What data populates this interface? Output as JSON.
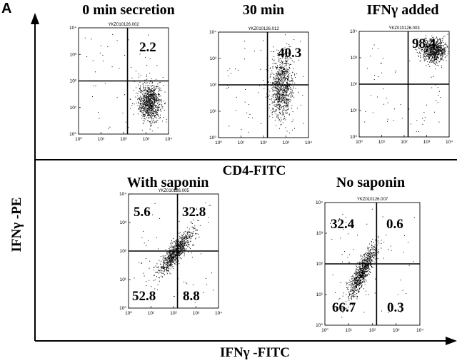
{
  "figure": {
    "panel_letter": "A",
    "y_axis_label": "IFNγ -PE",
    "x_axis_label_bottom": "IFNγ -FITC",
    "x_axis_label_middle": "CD4-FITC",
    "tick_labels": [
      "10⁰",
      "10¹",
      "10²",
      "10³",
      "10⁴"
    ]
  },
  "chart_data": [
    {
      "type": "scatter",
      "title": "0 min secretion",
      "sample_id": "YKZ010126.002",
      "xlabel": "CD4-FITC",
      "ylabel": "IFNγ -PE",
      "scale": "log",
      "xlim": [
        1,
        10000
      ],
      "ylim": [
        1,
        10000
      ],
      "quadrant_gate": {
        "x": 150,
        "y": 100
      },
      "quadrant_percentages": {
        "upper_right": "2.2"
      },
      "populations": [
        {
          "center_log": [
            3.15,
            1.2
          ],
          "spread_log": [
            0.25,
            0.35
          ],
          "count": 900
        }
      ]
    },
    {
      "type": "scatter",
      "title": "30 min",
      "sample_id": "YKZ010126.012",
      "xlabel": "CD4-FITC",
      "ylabel": "IFNγ -PE",
      "scale": "log",
      "xlim": [
        1,
        10000
      ],
      "ylim": [
        1,
        10000
      ],
      "quadrant_gate": {
        "x": 150,
        "y": 100
      },
      "quadrant_percentages": {
        "upper_right": "40.3"
      },
      "populations": [
        {
          "center_log": [
            2.8,
            1.95
          ],
          "spread_log": [
            0.25,
            0.6
          ],
          "count": 900
        }
      ]
    },
    {
      "type": "scatter",
      "title": "IFNγ added",
      "sample_id": "YKZ010126.003",
      "xlabel": "CD4-FITC",
      "ylabel": "IFNγ -PE",
      "scale": "log",
      "xlim": [
        1,
        10000
      ],
      "ylim": [
        1,
        10000
      ],
      "quadrant_gate": {
        "x": 150,
        "y": 100
      },
      "quadrant_percentages": {
        "upper_right": "98.4"
      },
      "populations": [
        {
          "center_log": [
            3.3,
            3.3
          ],
          "spread_log": [
            0.28,
            0.22
          ],
          "count": 800
        }
      ]
    },
    {
      "type": "scatter",
      "title": "With saponin",
      "sample_id": "YKZ010126.005",
      "xlabel": "IFNγ -FITC",
      "ylabel": "IFNγ -PE",
      "scale": "log",
      "xlim": [
        1,
        10000
      ],
      "ylim": [
        1,
        10000
      ],
      "quadrant_gate": {
        "x": 150,
        "y": 100
      },
      "quadrant_percentages": {
        "upper_left": "5.6",
        "upper_right": "32.8",
        "lower_left": "52.8",
        "lower_right": "8.8"
      },
      "populations": [
        {
          "center_log": [
            2.05,
            1.95
          ],
          "spread_log": [
            0.4,
            0.4
          ],
          "correlated": true,
          "count": 900
        }
      ]
    },
    {
      "type": "scatter",
      "title": "No saponin",
      "sample_id": "YKZ010126.007",
      "xlabel": "IFNγ -FITC",
      "ylabel": "IFNγ -PE",
      "scale": "log",
      "xlim": [
        1,
        10000
      ],
      "ylim": [
        1,
        10000
      ],
      "quadrant_gate": {
        "x": 150,
        "y": 100
      },
      "quadrant_percentages": {
        "upper_left": "32.4",
        "upper_right": "0.6",
        "lower_left": "66.7",
        "lower_right": "0.3"
      },
      "populations": [
        {
          "center_log": [
            1.55,
            1.75
          ],
          "spread_log": [
            0.3,
            0.45
          ],
          "correlated": true,
          "count": 900
        }
      ]
    }
  ]
}
